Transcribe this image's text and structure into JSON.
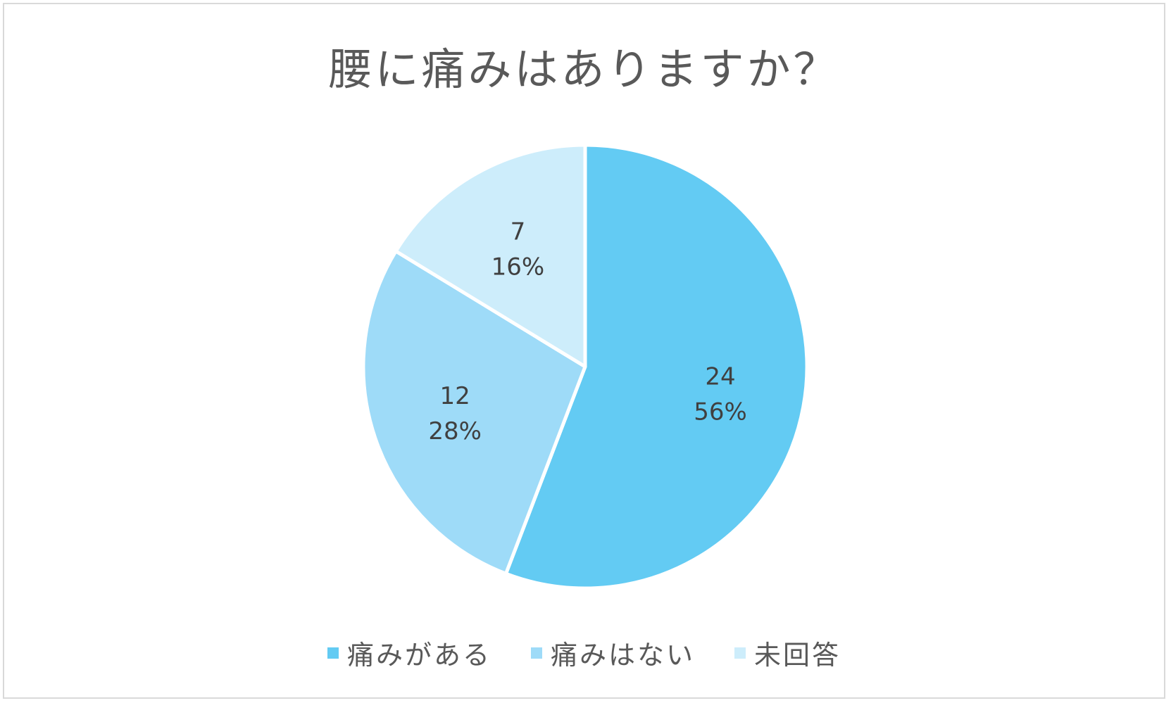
{
  "chart_data": {
    "type": "pie",
    "title": "腰に痛みはありますか？",
    "categories": [
      "痛みがある",
      "痛みはない",
      "未回答"
    ],
    "values": [
      24,
      12,
      7
    ],
    "percent_labels": [
      "56%",
      "28%",
      "16%"
    ],
    "colors": [
      "#63cbf3",
      "#9edbf8",
      "#cdedfb"
    ],
    "legend_position": "bottom",
    "start_angle": "12 o'clock, clockwise"
  }
}
